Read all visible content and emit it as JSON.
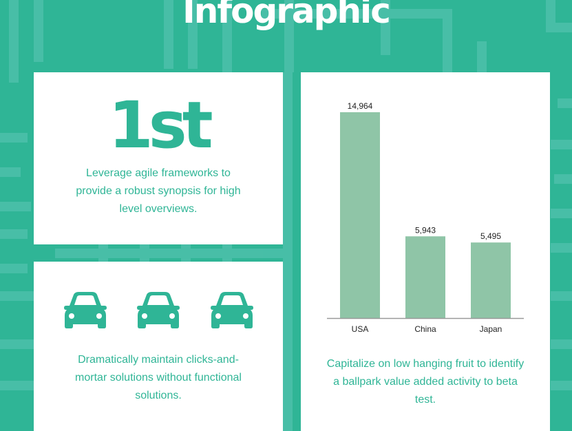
{
  "page": {
    "title": "Infographic",
    "colors": {
      "background": "#2fb596",
      "accent": "#2fb596",
      "bar": "#8fc5a7",
      "card": "#ffffff"
    }
  },
  "rank_card": {
    "value": "1st",
    "description": "Leverage agile frameworks to provide a robust synopsis for high level overviews."
  },
  "cars_card": {
    "icons": [
      "car-icon",
      "car-icon",
      "car-icon"
    ],
    "description": "Dramatically maintain clicks-and-mortar solutions without functional solutions."
  },
  "chart_card": {
    "description": "Capitalize on low hanging fruit to identify a ballpark value added activity to beta test."
  },
  "chart_data": {
    "type": "bar",
    "categories": [
      "USA",
      "China",
      "Japan"
    ],
    "values": [
      14964,
      5943,
      5495
    ],
    "value_labels": [
      "14,964",
      "5,943",
      "5,495"
    ],
    "ylim": [
      0,
      14964
    ],
    "grid": false,
    "legend": "none",
    "color": "#8fc5a7"
  }
}
